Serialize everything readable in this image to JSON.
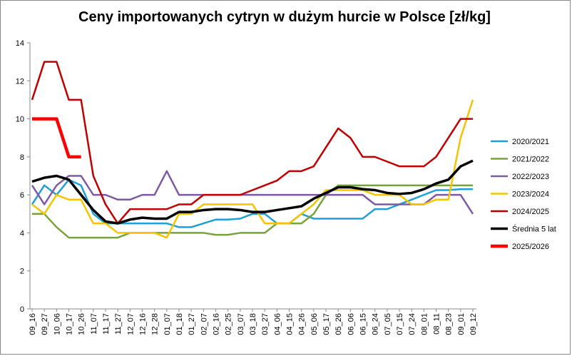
{
  "chart_data": {
    "type": "line",
    "title": "Ceny importowanych cytryn w dużym hurcie w Polsce [zł/kg]",
    "categories": [
      "09_16",
      "09_27",
      "10_06",
      "10_17",
      "10_26",
      "11_07",
      "11_17",
      "11_27",
      "12_07",
      "12_16",
      "12_28",
      "01_07",
      "01_18",
      "01_27",
      "02_07",
      "02_16",
      "02_25",
      "03_07",
      "03_18",
      "03_27",
      "04_06",
      "04_15",
      "04_26",
      "05_06",
      "05_17",
      "05_26",
      "06_06",
      "06_15",
      "06_24",
      "07_05",
      "07_15",
      "07_24",
      "08_01",
      "08_11",
      "08_23",
      "09_01",
      "09_12"
    ],
    "series": [
      {
        "name": "2020/2021",
        "color": "#1f9fd8",
        "width": 2.5,
        "values": [
          5.5,
          6.5,
          6.0,
          6.8,
          6.5,
          5.0,
          4.5,
          4.5,
          4.5,
          4.5,
          4.5,
          4.5,
          4.3,
          4.3,
          4.5,
          4.7,
          4.7,
          4.75,
          5.0,
          5.0,
          4.5,
          4.5,
          5.0,
          4.75,
          4.75,
          4.75,
          4.75,
          4.75,
          5.25,
          5.25,
          5.5,
          5.75,
          6.0,
          6.25,
          6.25,
          6.3,
          6.3
        ]
      },
      {
        "name": "2021/2022",
        "color": "#77a33b",
        "width": 2.5,
        "values": [
          5.0,
          5.0,
          4.3,
          3.75,
          3.75,
          3.75,
          3.75,
          3.75,
          4.0,
          4.0,
          4.0,
          4.0,
          4.0,
          4.0,
          4.0,
          3.9,
          3.9,
          4.0,
          4.0,
          4.0,
          4.5,
          4.5,
          4.5,
          5.0,
          6.0,
          6.5,
          6.5,
          6.5,
          6.5,
          6.5,
          6.5,
          6.5,
          6.5,
          6.5,
          6.5,
          6.5,
          6.5
        ]
      },
      {
        "name": "2022/2023",
        "color": "#7e5aa2",
        "width": 2.5,
        "values": [
          6.5,
          5.5,
          6.5,
          7.0,
          7.0,
          6.0,
          6.0,
          5.75,
          5.75,
          6.0,
          6.0,
          7.25,
          6.0,
          6.0,
          6.0,
          6.0,
          6.0,
          6.0,
          6.0,
          6.0,
          6.0,
          6.0,
          6.0,
          6.0,
          6.0,
          6.0,
          6.0,
          6.0,
          5.5,
          5.5,
          5.5,
          5.5,
          5.5,
          6.0,
          6.0,
          6.0,
          5.0
        ]
      },
      {
        "name": "2023/2024",
        "color": "#f5c400",
        "width": 2.5,
        "values": [
          5.5,
          5.0,
          6.0,
          5.75,
          5.75,
          4.5,
          4.5,
          4.0,
          4.0,
          4.0,
          4.0,
          3.75,
          5.0,
          5.0,
          5.5,
          5.5,
          5.5,
          5.5,
          5.5,
          4.5,
          4.5,
          4.5,
          5.0,
          5.5,
          6.25,
          6.25,
          6.25,
          6.25,
          6.0,
          6.0,
          6.0,
          5.5,
          5.5,
          5.75,
          5.75,
          9.0,
          11.0
        ]
      },
      {
        "name": "2024/2025",
        "color": "#c00000",
        "width": 2.5,
        "values": [
          11.0,
          13.0,
          13.0,
          11.0,
          11.0,
          7.0,
          5.5,
          4.5,
          5.25,
          5.25,
          5.25,
          5.25,
          5.5,
          5.5,
          6.0,
          6.0,
          6.0,
          6.0,
          6.25,
          6.5,
          6.75,
          7.25,
          7.25,
          7.5,
          8.5,
          9.5,
          9.0,
          8.0,
          8.0,
          7.75,
          7.5,
          7.5,
          7.5,
          8.0,
          9.0,
          10.0,
          10.0
        ]
      },
      {
        "name": "Średnia 5 lat",
        "color": "#000000",
        "width": 3.5,
        "values": [
          6.7,
          6.9,
          7.0,
          6.8,
          6.0,
          5.2,
          4.6,
          4.5,
          4.7,
          4.8,
          4.75,
          4.75,
          5.1,
          5.1,
          5.2,
          5.25,
          5.25,
          5.2,
          5.1,
          5.1,
          5.2,
          5.3,
          5.4,
          5.8,
          6.1,
          6.4,
          6.4,
          6.3,
          6.25,
          6.1,
          6.05,
          6.1,
          6.3,
          6.6,
          6.8,
          7.5,
          7.8
        ]
      },
      {
        "name": "2025/2026",
        "color": "#ff0000",
        "width": 4.5,
        "values": [
          10.0,
          10.0,
          10.0,
          8.0,
          8.0,
          null,
          null,
          null,
          null,
          null,
          null,
          null,
          null,
          null,
          null,
          null,
          null,
          null,
          null,
          null,
          null,
          null,
          null,
          null,
          null,
          null,
          null,
          null,
          null,
          null,
          null,
          null,
          null,
          null,
          null,
          null,
          null
        ]
      }
    ],
    "ylim": [
      0,
      14
    ],
    "yticks": [
      0,
      2,
      4,
      6,
      8,
      10,
      12,
      14
    ],
    "grid": false
  }
}
